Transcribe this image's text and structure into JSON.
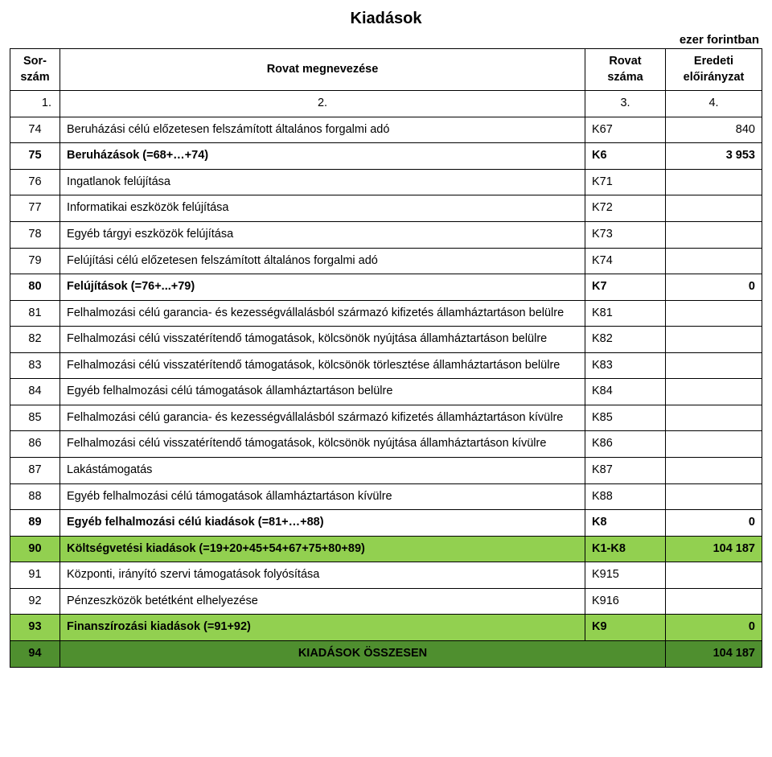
{
  "title": "Kiadások",
  "unit_label": "ezer forintban",
  "header": {
    "col1": "Sor-szám",
    "col2": "Rovat megnevezése",
    "col3": "Rovat száma",
    "col4": "Eredeti előirányzat"
  },
  "num_row": {
    "c1": "1.",
    "c2": "2.",
    "c3": "3.",
    "c4": "4."
  },
  "rows": [
    {
      "n": "74",
      "name": "Beruházási célú előzetesen felszámított általános forgalmi adó",
      "code": "K67",
      "val": "840",
      "bold": false,
      "hl": ""
    },
    {
      "n": "75",
      "name": "Beruházások (=68+…+74)",
      "code": "K6",
      "val": "3 953",
      "bold": true,
      "hl": ""
    },
    {
      "n": "76",
      "name": "Ingatlanok felújítása",
      "code": "K71",
      "val": "",
      "bold": false,
      "hl": ""
    },
    {
      "n": "77",
      "name": "Informatikai eszközök felújítása",
      "code": "K72",
      "val": "",
      "bold": false,
      "hl": ""
    },
    {
      "n": "78",
      "name": "Egyéb tárgyi eszközök felújítása",
      "code": "K73",
      "val": "",
      "bold": false,
      "hl": ""
    },
    {
      "n": "79",
      "name": "Felújítási célú előzetesen felszámított általános forgalmi adó",
      "code": "K74",
      "val": "",
      "bold": false,
      "hl": ""
    },
    {
      "n": "80",
      "name": "Felújítások (=76+...+79)",
      "code": "K7",
      "val": "0",
      "bold": true,
      "hl": ""
    },
    {
      "n": "81",
      "name": "Felhalmozási célú garancia- és kezességvállalásból származó kifizetés államháztartáson belülre",
      "code": "K81",
      "val": "",
      "bold": false,
      "hl": ""
    },
    {
      "n": "82",
      "name": "Felhalmozási célú visszatérítendő támogatások, kölcsönök nyújtása államháztartáson belülre",
      "code": "K82",
      "val": "",
      "bold": false,
      "hl": ""
    },
    {
      "n": "83",
      "name": "Felhalmozási célú visszatérítendő támogatások, kölcsönök törlesztése államháztartáson belülre",
      "code": "K83",
      "val": "",
      "bold": false,
      "hl": ""
    },
    {
      "n": "84",
      "name": "Egyéb felhalmozási célú támogatások államháztartáson belülre",
      "code": "K84",
      "val": "",
      "bold": false,
      "hl": ""
    },
    {
      "n": "85",
      "name": "Felhalmozási célú garancia- és kezességvállalásból származó kifizetés államháztartáson kívülre",
      "code": "K85",
      "val": "",
      "bold": false,
      "hl": ""
    },
    {
      "n": "86",
      "name": "Felhalmozási célú visszatérítendő támogatások, kölcsönök nyújtása államháztartáson kívülre",
      "code": "K86",
      "val": "",
      "bold": false,
      "hl": ""
    },
    {
      "n": "87",
      "name": "Lakástámogatás",
      "code": "K87",
      "val": "",
      "bold": false,
      "hl": ""
    },
    {
      "n": "88",
      "name": "Egyéb felhalmozási célú támogatások államháztartáson kívülre",
      "code": "K88",
      "val": "",
      "bold": false,
      "hl": ""
    },
    {
      "n": "89",
      "name": "Egyéb felhalmozási célú kiadások (=81+…+88)",
      "code": "K8",
      "val": "0",
      "bold": true,
      "hl": ""
    },
    {
      "n": "90",
      "name": "Költségvetési kiadások (=19+20+45+54+67+75+80+89)",
      "code": "K1-K8",
      "val": "104 187",
      "bold": true,
      "hl": "light"
    },
    {
      "n": "91",
      "name": "Központi, irányító szervi támogatások folyósítása",
      "code": "K915",
      "val": "",
      "bold": false,
      "hl": ""
    },
    {
      "n": "92",
      "name": "Pénzeszközök betétként elhelyezése",
      "code": "K916",
      "val": "",
      "bold": false,
      "hl": ""
    },
    {
      "n": "93",
      "name": "Finanszírozási kiadások (=91+92)",
      "code": "K9",
      "val": "0",
      "bold": true,
      "hl": "light"
    }
  ],
  "total_row": {
    "n": "94",
    "name": "KIADÁSOK ÖSSZESEN",
    "val": "104 187"
  },
  "colors": {
    "hl_light": "#92d050",
    "hl_dark": "#4f8f2f",
    "border": "#000000",
    "bg": "#ffffff"
  }
}
